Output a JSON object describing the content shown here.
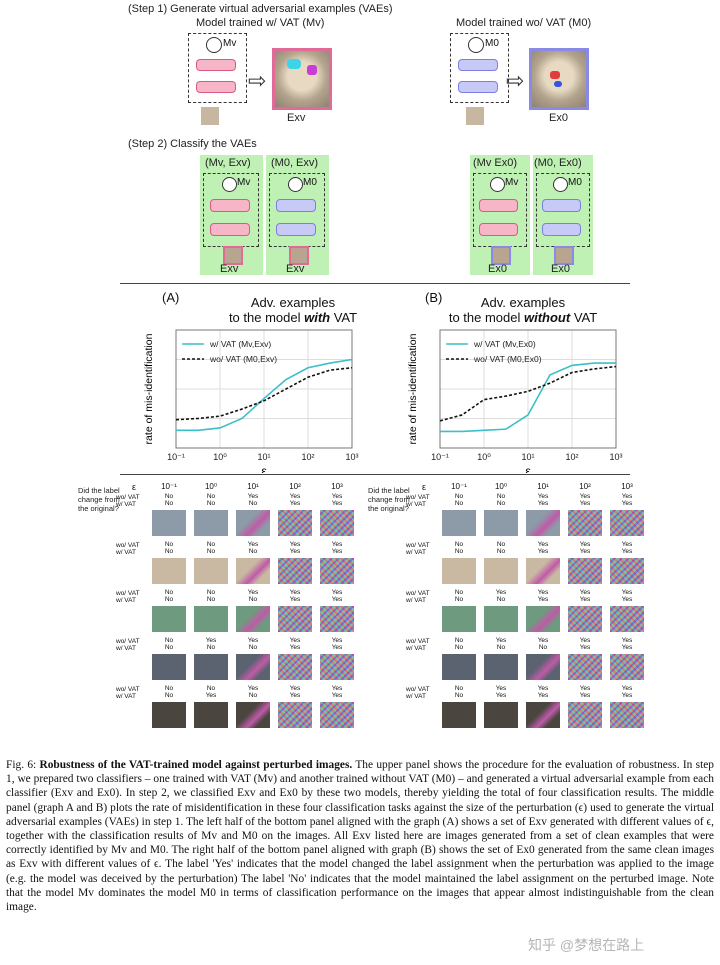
{
  "step1": {
    "label": "(Step 1) Generate virtual adversarial examples (VAEs)",
    "left_title": "Model trained w/ VAT (Mv)",
    "right_title": "Model trained wo/  VAT (M0)",
    "left_model": "Mv",
    "right_model": "M0",
    "left_example": "Exv",
    "right_example": "Ex0"
  },
  "step2": {
    "label": "(Step 2) Classify the VAEs",
    "groups": [
      {
        "header": "(Mv, Exv)",
        "model": "Mv",
        "example": "Exv",
        "color": "pink"
      },
      {
        "header": "(M0, Exv)",
        "model": "M0",
        "example": "Exv",
        "color": "blue"
      },
      {
        "header": "(Mv Ex0)",
        "model": "Mv",
        "example": "Ex0",
        "color": "pink"
      },
      {
        "header": "(M0, Ex0)",
        "model": "M0",
        "example": "Ex0",
        "color": "blue"
      }
    ]
  },
  "graphA": {
    "tag": "(A)",
    "title_line1": "Adv. examples",
    "title_line2_prefix": "to the model ",
    "title_line2_em": "with",
    "title_line2_suffix": " VAT",
    "legend": [
      "w/ VAT (Mv,Exv)",
      "wo/ VAT (M0,Exv)"
    ]
  },
  "graphB": {
    "tag": "(B)",
    "title_line1": "Adv. examples",
    "title_line2_prefix": "to the model ",
    "title_line2_em": "without",
    "title_line2_suffix": " VAT",
    "legend": [
      "w/ VAT (Mv,Ex0)",
      "wo/ VAT (M0,Ex0)"
    ]
  },
  "chart_data": [
    {
      "type": "line",
      "title": "Adv. examples to the model with VAT",
      "xlabel": "ε",
      "ylabel": "rate of mis-identification",
      "x": [
        -1,
        -0.5,
        0,
        0.5,
        1,
        1.5,
        2,
        2.5,
        3
      ],
      "x_ticks": [
        "10⁻¹",
        "10⁰",
        "10¹",
        "10²",
        "10³"
      ],
      "ylim": [
        0,
        1
      ],
      "series": [
        {
          "name": "w/ VAT (Mv,Exv)",
          "style": "solid",
          "color": "#3bbfc9",
          "values": [
            0.15,
            0.15,
            0.17,
            0.25,
            0.42,
            0.58,
            0.68,
            0.72,
            0.75
          ]
        },
        {
          "name": "wo/ VAT (M0,Exv)",
          "style": "dashed",
          "color": "#111111",
          "values": [
            0.24,
            0.25,
            0.27,
            0.33,
            0.4,
            0.5,
            0.6,
            0.66,
            0.68
          ]
        }
      ]
    },
    {
      "type": "line",
      "title": "Adv. examples to the model without VAT",
      "xlabel": "ε",
      "ylabel": "rate of mis-identification",
      "x": [
        -1,
        -0.5,
        0,
        0.5,
        1,
        1.5,
        2,
        2.5,
        3
      ],
      "x_ticks": [
        "10⁻¹",
        "10⁰",
        "10¹",
        "10²",
        "10³"
      ],
      "ylim": [
        0,
        1
      ],
      "series": [
        {
          "name": "w/ VAT (Mv,Ex0)",
          "style": "solid",
          "color": "#3bbfc9",
          "values": [
            0.14,
            0.14,
            0.15,
            0.16,
            0.28,
            0.62,
            0.7,
            0.72,
            0.72
          ]
        },
        {
          "name": "wo/ VAT (M0,Ex0)",
          "style": "dashed",
          "color": "#111111",
          "values": [
            0.23,
            0.28,
            0.41,
            0.44,
            0.48,
            0.55,
            0.64,
            0.67,
            0.69
          ]
        }
      ]
    }
  ],
  "grid": {
    "question": [
      "Did the label",
      "change from",
      "the original?"
    ],
    "eps_label": "ε",
    "eps_values": [
      "10⁻¹",
      "10⁰",
      "10¹",
      "10²",
      "10³"
    ],
    "row_labels": [
      "wo/ VAT",
      "w/ VAT"
    ],
    "left_rows": [
      {
        "wo": [
          "No",
          "No",
          "Yes",
          "Yes",
          "Yes"
        ],
        "w": [
          "No",
          "No",
          "No",
          "Yes",
          "Yes"
        ]
      },
      {
        "wo": [
          "No",
          "No",
          "Yes",
          "Yes",
          "Yes"
        ],
        "w": [
          "No",
          "No",
          "No",
          "Yes",
          "Yes"
        ]
      },
      {
        "wo": [
          "No",
          "No",
          "Yes",
          "Yes",
          "Yes"
        ],
        "w": [
          "No",
          "No",
          "No",
          "Yes",
          "Yes"
        ]
      },
      {
        "wo": [
          "No",
          "Yes",
          "Yes",
          "Yes",
          "Yes"
        ],
        "w": [
          "No",
          "No",
          "No",
          "Yes",
          "Yes"
        ]
      },
      {
        "wo": [
          "No",
          "No",
          "Yes",
          "Yes",
          "Yes"
        ],
        "w": [
          "No",
          "Yes",
          "No",
          "Yes",
          "Yes"
        ]
      }
    ],
    "right_rows": [
      {
        "wo": [
          "No",
          "No",
          "Yes",
          "Yes",
          "Yes"
        ],
        "w": [
          "No",
          "No",
          "Yes",
          "Yes",
          "Yes"
        ]
      },
      {
        "wo": [
          "No",
          "No",
          "Yes",
          "Yes",
          "Yes"
        ],
        "w": [
          "No",
          "No",
          "Yes",
          "Yes",
          "Yes"
        ]
      },
      {
        "wo": [
          "No",
          "Yes",
          "Yes",
          "Yes",
          "Yes"
        ],
        "w": [
          "No",
          "No",
          "Yes",
          "Yes",
          "Yes"
        ]
      },
      {
        "wo": [
          "No",
          "Yes",
          "Yes",
          "Yes",
          "Yes"
        ],
        "w": [
          "No",
          "No",
          "No",
          "Yes",
          "Yes"
        ]
      },
      {
        "wo": [
          "No",
          "Yes",
          "Yes",
          "Yes",
          "Yes"
        ],
        "w": [
          "No",
          "Yes",
          "Yes",
          "Yes",
          "Yes"
        ]
      }
    ]
  },
  "caption": {
    "fig": "Fig. 6: ",
    "bold": "Robustness of the VAT-trained model against perturbed images.",
    "text": " The upper panel shows the procedure for the evaluation of robustness. In step 1, we prepared two classifiers – one trained with VAT (Mv) and another trained without VAT (M0) – and generated a virtual adversarial example from each classifier (Exv and Ex0). In step 2, we classified Exv and Ex0 by these two models, thereby yielding the total of four classification results. The middle panel (graph A and B) plots the rate of misidentification in these four classification tasks against the size of the perturbation (ϵ) used to generate the virtual adversarial examples (VAEs) in step 1. The left half of the bottom panel aligned with the graph (A) shows a set of Exv generated with different values of ϵ, together with the classification results of Mv and M0 on the images. All Exv listed here are images generated from a set of clean examples that were correctly identified by Mv and M0. The right half of the bottom panel aligned with graph (B) shows the set of Ex0 generated from the same clean images as Exv with different values of ϵ. The label 'Yes' indicates that the model changed the label assignment when the perturbation was applied to the image (e.g. the model was deceived by the perturbation) The label 'No' indicates that the model maintained the label assignment on the perturbed image. Note that the model Mv dominates the model M0 in terms of classification performance on the images that appear almost indistinguishable from the clean image."
  },
  "watermark": "知乎 @梦想在路上"
}
